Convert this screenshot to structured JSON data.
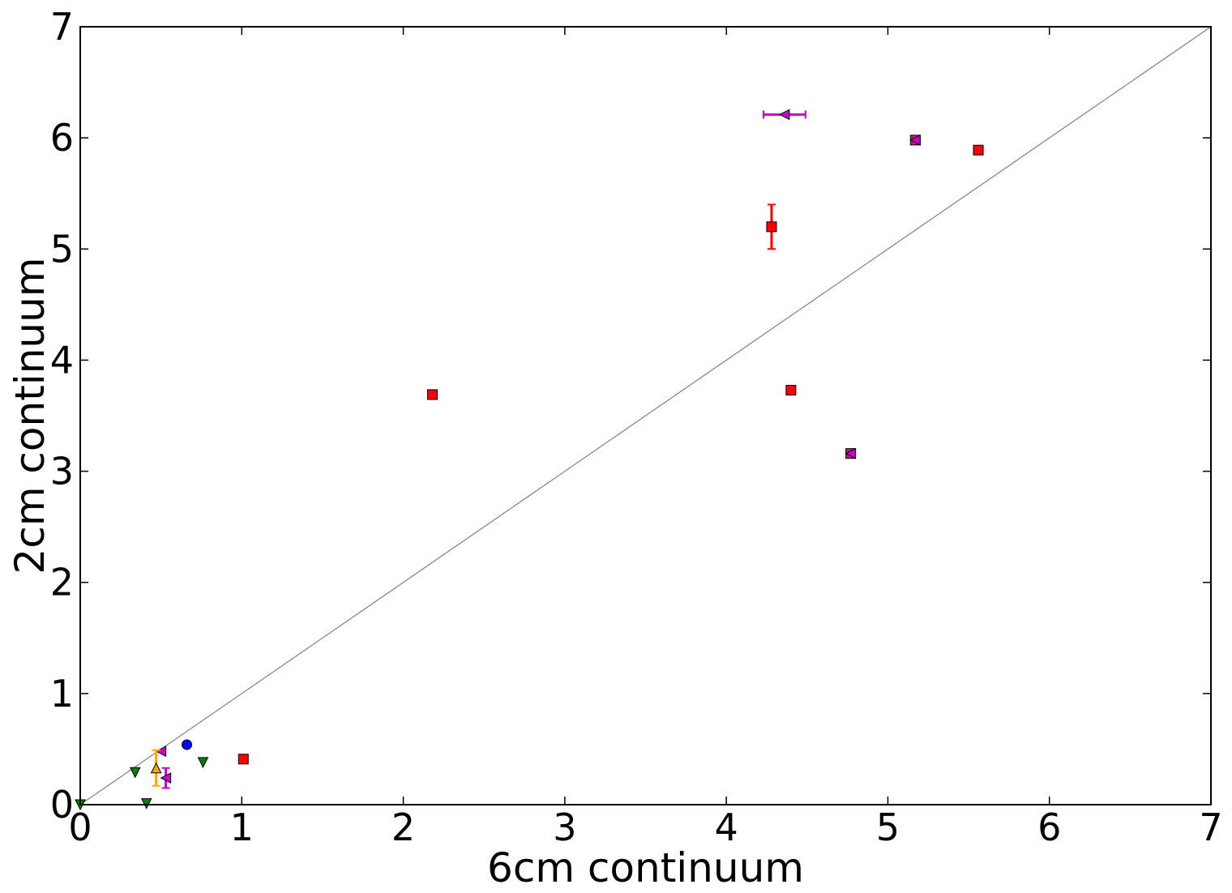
{
  "chart_data": {
    "type": "scatter",
    "title": "",
    "xlabel": "6cm continuum",
    "ylabel": "2cm continuum",
    "xlim": [
      0,
      7
    ],
    "ylim": [
      0,
      7
    ],
    "xticks": [
      "0",
      "1",
      "2",
      "3",
      "4",
      "5",
      "6",
      "7"
    ],
    "yticks": [
      "0",
      "1",
      "2",
      "3",
      "4",
      "5",
      "6",
      "7"
    ],
    "grid": false,
    "legend": "none",
    "reference_line": {
      "x": [
        0,
        7
      ],
      "y": [
        0,
        7
      ],
      "color": "#808080"
    },
    "series": [
      {
        "marker": "square",
        "color": "#ff0000",
        "points": [
          {
            "x": 1.01,
            "y": 0.41
          },
          {
            "x": 2.18,
            "y": 3.69
          },
          {
            "x": 4.28,
            "y": 5.2,
            "yerr": 0.2
          },
          {
            "x": 4.4,
            "y": 3.73
          },
          {
            "x": 5.56,
            "y": 5.89
          }
        ]
      },
      {
        "marker": "square",
        "color": "#c71585",
        "points": [
          {
            "x": 4.77,
            "y": 3.16
          },
          {
            "x": 5.17,
            "y": 5.98
          }
        ]
      },
      {
        "marker": "triangle-left",
        "color": "#cc00cc",
        "points": [
          {
            "x": 4.36,
            "y": 6.21,
            "xerr": 0.13
          },
          {
            "x": 0.5,
            "y": 0.48
          },
          {
            "x": 0.53,
            "y": 0.24,
            "yerr": 0.09
          },
          {
            "x": 4.77,
            "y": 3.16
          },
          {
            "x": 5.17,
            "y": 5.98
          }
        ]
      },
      {
        "marker": "circle",
        "color": "#0000ff",
        "points": [
          {
            "x": 0.66,
            "y": 0.54
          }
        ]
      },
      {
        "marker": "triangle-down",
        "color": "#008000",
        "points": [
          {
            "x": 0.34,
            "y": 0.29
          },
          {
            "x": 0.41,
            "y": 0.01
          },
          {
            "x": 0.76,
            "y": 0.38
          },
          {
            "x": 0.0,
            "y": 0.0
          }
        ]
      },
      {
        "marker": "triangle-up",
        "color": "#ffa500",
        "points": [
          {
            "x": 0.47,
            "y": 0.33,
            "yerr": 0.16
          }
        ]
      }
    ]
  }
}
